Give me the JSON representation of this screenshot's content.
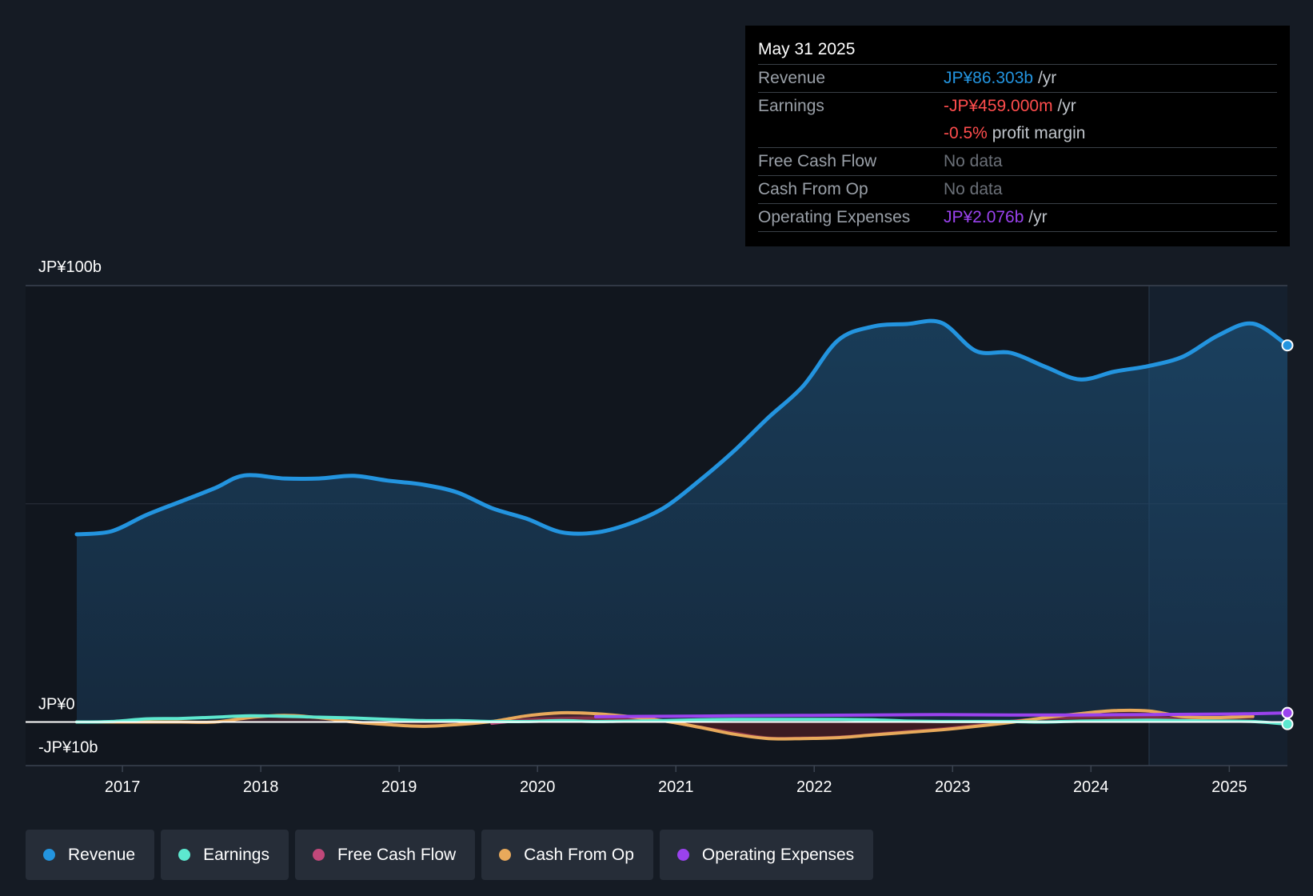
{
  "tooltip": {
    "date": "May 31 2025",
    "rows": {
      "revenue": {
        "label": "Revenue",
        "value": "JP¥86.303b",
        "unit": "/yr"
      },
      "earnings": {
        "label": "Earnings",
        "value": "-JP¥459.000m",
        "unit": "/yr"
      },
      "margin": {
        "value": "-0.5%",
        "text": "profit margin"
      },
      "fcf": {
        "label": "Free Cash Flow",
        "value": "No data"
      },
      "cfo": {
        "label": "Cash From Op",
        "value": "No data"
      },
      "opex": {
        "label": "Operating Expenses",
        "value": "JP¥2.076b",
        "unit": "/yr"
      }
    }
  },
  "legend": {
    "revenue": "Revenue",
    "earnings": "Earnings",
    "fcf": "Free Cash Flow",
    "cfo": "Cash From Op",
    "opex": "Operating Expenses"
  },
  "colors": {
    "revenue": "#2394df",
    "earnings": "#5de8cf",
    "fcf": "#c0487a",
    "cfo": "#e8a95b",
    "opex": "#9a42ee",
    "negative": "#ff4d4d"
  },
  "chart_data": {
    "type": "area",
    "y_axis_labels": [
      "JP¥100b",
      "JP¥0",
      "-JP¥10b"
    ],
    "ylim": [
      -10,
      100
    ],
    "x_tick_labels": [
      "2017",
      "2018",
      "2019",
      "2020",
      "2021",
      "2022",
      "2023",
      "2024",
      "2025"
    ],
    "x_ticks": [
      2017,
      2018,
      2019,
      2020,
      2021,
      2022,
      2023,
      2024,
      2025
    ],
    "xlim": [
      2016.3,
      2025.42
    ],
    "past_data_start": 2024.42,
    "series": [
      {
        "name": "Revenue",
        "key": "revenue",
        "area": true,
        "x": [
          2016.67,
          2016.92,
          2017.17,
          2017.42,
          2017.67,
          2017.88,
          2018.17,
          2018.42,
          2018.67,
          2018.92,
          2019.17,
          2019.42,
          2019.67,
          2019.92,
          2020.17,
          2020.42,
          2020.67,
          2020.92,
          2021.17,
          2021.42,
          2021.67,
          2021.92,
          2022.17,
          2022.42,
          2022.67,
          2022.92,
          2023.17,
          2023.42,
          2023.67,
          2023.92,
          2024.17,
          2024.42,
          2024.67,
          2024.92,
          2025.17,
          2025.42
        ],
        "y": [
          43,
          43.7,
          47.4,
          50.5,
          53.6,
          56.5,
          55.8,
          55.8,
          56.4,
          55.3,
          54.4,
          52.6,
          49,
          46.6,
          43.5,
          43.4,
          45.5,
          49.2,
          55.3,
          62.1,
          69.8,
          77,
          87.4,
          90.6,
          91.2,
          91.5,
          85,
          84.6,
          81.4,
          78.5,
          80.3,
          81.6,
          83.8,
          88.6,
          91.3,
          86.3
        ]
      },
      {
        "name": "Earnings",
        "key": "earnings",
        "x": [
          2016.67,
          2016.92,
          2017.17,
          2017.42,
          2017.67,
          2017.92,
          2018.17,
          2018.42,
          2018.67,
          2018.92,
          2019.17,
          2019.42,
          2019.67,
          2019.92,
          2020.17,
          2020.42,
          2020.67,
          2020.92,
          2021.17,
          2021.42,
          2021.67,
          2021.92,
          2022.17,
          2022.42,
          2022.67,
          2022.92,
          2023.17,
          2023.42,
          2023.67,
          2023.92,
          2024.17,
          2024.42,
          2024.67,
          2024.92,
          2025.17,
          2025.42
        ],
        "y": [
          0,
          0.1,
          0.7,
          0.8,
          1.1,
          1.4,
          1.3,
          1.1,
          0.9,
          0.6,
          0.3,
          0.3,
          0.1,
          0.1,
          0.3,
          0.1,
          0.2,
          0.3,
          0.5,
          0.6,
          0.6,
          0.6,
          0.6,
          0.5,
          0.2,
          0.1,
          0.1,
          0.1,
          0,
          0.2,
          0.3,
          0.4,
          0.3,
          0.2,
          0.1,
          -0.5
        ]
      },
      {
        "name": "Free Cash Flow",
        "key": "fcf",
        "x": [
          2019.67,
          2019.92,
          2020.17,
          2020.42,
          2020.67,
          2020.92,
          2021.17,
          2021.42,
          2021.67,
          2021.92,
          2022.17,
          2022.42,
          2022.67,
          2022.92,
          2023.17,
          2023.42,
          2023.67,
          2023.92,
          2024.17,
          2024.42,
          2024.67,
          2024.92,
          2025.17
        ],
        "y": [
          -0.3,
          0.5,
          0.8,
          0.9,
          0.5,
          0.2,
          -1.2,
          -2.5,
          -3.7,
          -3.7,
          -3.5,
          -2.9,
          -2.2,
          -1.6,
          -0.8,
          0.1,
          0.8,
          1.1,
          1.1,
          1.1,
          0.7,
          0.9,
          1.2
        ]
      },
      {
        "name": "Cash From Op",
        "key": "cfo",
        "x": [
          2016.67,
          2016.92,
          2017.17,
          2017.42,
          2017.67,
          2017.92,
          2018.17,
          2018.42,
          2018.67,
          2018.92,
          2019.17,
          2019.42,
          2019.67,
          2019.92,
          2020.17,
          2020.42,
          2020.67,
          2020.92,
          2021.17,
          2021.42,
          2021.67,
          2021.92,
          2022.17,
          2022.42,
          2022.67,
          2022.92,
          2023.17,
          2023.42,
          2023.67,
          2023.92,
          2024.17,
          2024.42,
          2024.67,
          2024.92,
          2025.17
        ],
        "y": [
          0,
          0,
          0,
          0,
          0,
          1,
          1.5,
          1,
          0,
          -0.6,
          -1,
          -0.6,
          0.1,
          1.4,
          2.1,
          1.9,
          1.2,
          0.2,
          -1.2,
          -2.8,
          -3.8,
          -3.8,
          -3.6,
          -3,
          -2.4,
          -1.8,
          -1,
          -0.1,
          1,
          1.9,
          2.6,
          2.5,
          1.2,
          1,
          1.3
        ]
      },
      {
        "name": "Operating Expenses",
        "key": "opex",
        "x": [
          2020.42,
          2020.92,
          2021.42,
          2021.92,
          2022.42,
          2022.92,
          2023.42,
          2023.92,
          2024.42,
          2024.92,
          2025.17,
          2025.42
        ],
        "y": [
          1.2,
          1.3,
          1.4,
          1.5,
          1.6,
          1.7,
          1.6,
          1.6,
          1.7,
          1.8,
          1.9,
          2.076
        ]
      }
    ]
  }
}
